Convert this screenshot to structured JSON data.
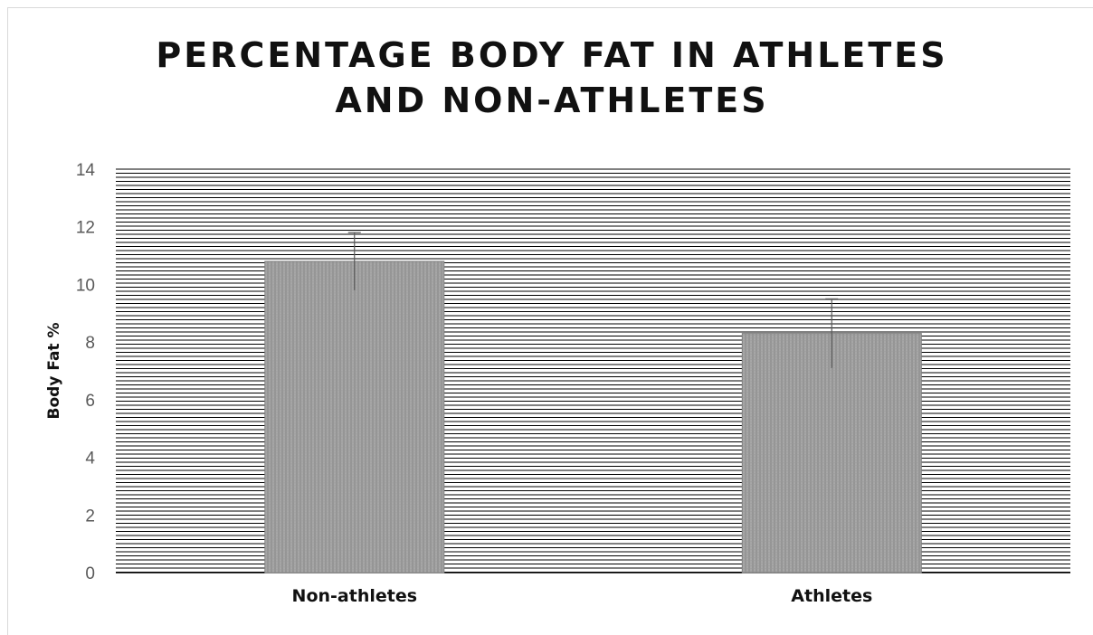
{
  "chart_data": {
    "type": "bar",
    "title_lines": [
      "PERCENTAGE BODY FAT IN ATHLETES",
      "AND NON-ATHLETES"
    ],
    "categories": [
      "Non-athletes",
      "Athletes"
    ],
    "values": [
      10.8,
      8.3
    ],
    "error": [
      1.0,
      1.2
    ],
    "ylabel": "Body Fat %",
    "xlabel": "",
    "ylim": [
      0,
      14
    ],
    "yticks": [
      0,
      2,
      4,
      6,
      8,
      10,
      12,
      14
    ],
    "grid": true,
    "colors": {
      "bar": "#a6a6a6",
      "grid": "#000000",
      "error": "#595959"
    }
  }
}
